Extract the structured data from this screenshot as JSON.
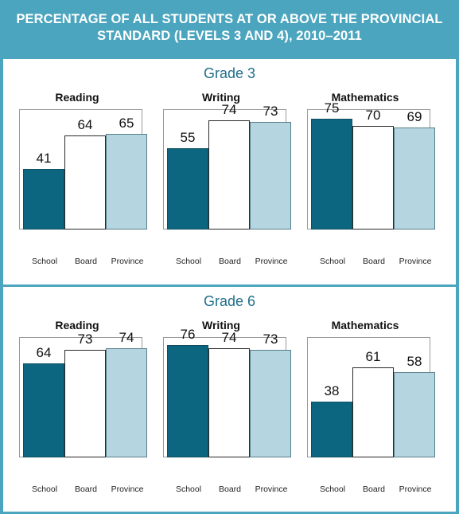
{
  "title": "PERCENTAGE OF ALL STUDENTS AT OR ABOVE THE PROVINCIAL STANDARD (LEVELS 3 AND 4), 2010–2011",
  "colors": {
    "frame": "#4ba5be",
    "school": "#0d6680",
    "board": "#ffffff",
    "province": "#b5d6e0",
    "grade_title": "#1f6f8b"
  },
  "chart_data": [
    {
      "type": "bar",
      "grade": "Grade 3",
      "title": "Reading",
      "categories": [
        "School",
        "Board",
        "Province"
      ],
      "values": [
        41,
        64,
        65
      ],
      "ylim": [
        0,
        100
      ],
      "grid": false
    },
    {
      "type": "bar",
      "grade": "Grade 3",
      "title": "Writing",
      "categories": [
        "School",
        "Board",
        "Province"
      ],
      "values": [
        55,
        74,
        73
      ],
      "ylim": [
        0,
        100
      ],
      "grid": false
    },
    {
      "type": "bar",
      "grade": "Grade 3",
      "title": "Mathematics",
      "categories": [
        "School",
        "Board",
        "Province"
      ],
      "values": [
        75,
        70,
        69
      ],
      "ylim": [
        0,
        100
      ],
      "grid": false
    },
    {
      "type": "bar",
      "grade": "Grade 6",
      "title": "Reading",
      "categories": [
        "School",
        "Board",
        "Province"
      ],
      "values": [
        64,
        73,
        74
      ],
      "ylim": [
        0,
        100
      ],
      "grid": false
    },
    {
      "type": "bar",
      "grade": "Grade 6",
      "title": "Writing",
      "categories": [
        "School",
        "Board",
        "Province"
      ],
      "values": [
        76,
        74,
        73
      ],
      "ylim": [
        0,
        100
      ],
      "grid": false
    },
    {
      "type": "bar",
      "grade": "Grade 6",
      "title": "Mathematics",
      "categories": [
        "School",
        "Board",
        "Province"
      ],
      "values": [
        38,
        61,
        58
      ],
      "ylim": [
        0,
        100
      ],
      "grid": false
    }
  ]
}
